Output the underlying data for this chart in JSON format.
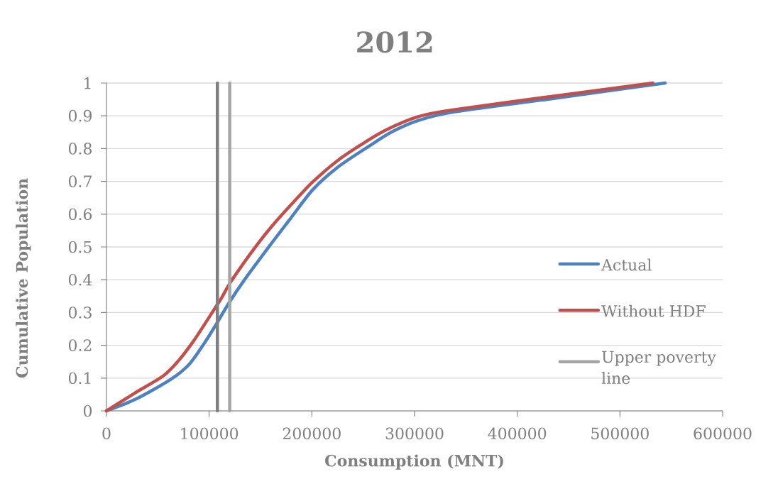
{
  "chart_data": {
    "type": "line",
    "title": "2012",
    "xlabel": "Consumption (MNT)",
    "ylabel": "Cumulative Population",
    "series": [
      {
        "name": "Actual",
        "color": "#4f81bd",
        "x": [
          0,
          28000,
          62000,
          80000,
          95000,
          108000,
          119000,
          134000,
          159000,
          179000,
          201000,
          226000,
          256000,
          278000,
          304000,
          337000,
          433000,
          544000
        ],
        "values": [
          0,
          0.035,
          0.095,
          0.14,
          0.205,
          0.27,
          0.328,
          0.398,
          0.504,
          0.586,
          0.675,
          0.745,
          0.808,
          0.851,
          0.886,
          0.911,
          0.952,
          1
        ]
      },
      {
        "name": "Without HDF",
        "color": "#c0504d",
        "x": [
          0,
          28000,
          55000,
          69000,
          85000,
          106000,
          112000,
          122000,
          146000,
          164000,
          189000,
          201000,
          224000,
          246000,
          271000,
          303000,
          337000,
          433000,
          532000
        ],
        "values": [
          0,
          0.055,
          0.106,
          0.149,
          0.214,
          0.315,
          0.344,
          0.398,
          0.504,
          0.574,
          0.66,
          0.699,
          0.761,
          0.808,
          0.855,
          0.897,
          0.918,
          0.959,
          1
        ]
      },
      {
        "color": "#7f7f7f",
        "x": [
          108000,
          108000
        ],
        "values": [
          0,
          1
        ]
      },
      {
        "name": "Upper poverty line",
        "color": "#a5a5a5",
        "x": [
          120000,
          120000
        ],
        "values": [
          0,
          1
        ]
      }
    ],
    "xlim": [
      0,
      600000
    ],
    "xticks": [
      0,
      100000,
      200000,
      300000,
      400000,
      500000,
      600000
    ],
    "ylim": [
      0,
      1
    ],
    "yticks": [
      0,
      0.1,
      0.2,
      0.3,
      0.4,
      0.5,
      0.6,
      0.7,
      0.8,
      0.9,
      1
    ],
    "grid": "y",
    "legend": "right",
    "line_style": "solid"
  }
}
